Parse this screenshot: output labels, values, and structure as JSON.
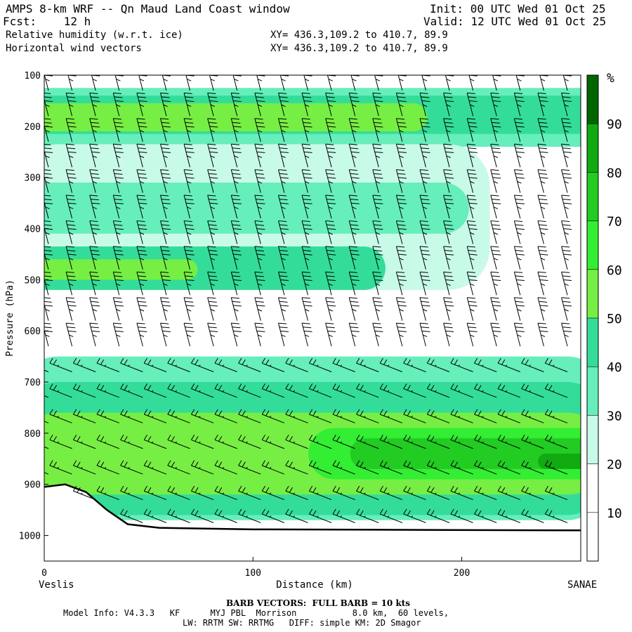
{
  "header": {
    "title": "AMPS 8-km WRF -- Qn Maud Land Coast window",
    "fcst": "Fcst:    12 h",
    "init": "Init: 00 UTC Wed 01 Oct 25",
    "valid": "Valid: 12 UTC Wed 01 Oct 25",
    "field1": "Relative humidity (w.r.t. ice)",
    "field2": "Horizontal wind vectors",
    "xy1": "XY= 436.3,109.2 to 410.7, 89.9",
    "xy2": "XY= 436.3,109.2 to 410.7, 89.9"
  },
  "footer": {
    "barb_note": "BARB VECTORS:  FULL BARB = 10 kts",
    "model_line1": "Model Info: V4.3.3   KF      MYJ PBL  Morrison           8.0 km,  60 levels,",
    "model_line2": "LW: RRTM SW: RRTMG   DIFF: simple KM: 2D Smagor"
  },
  "chart_data": {
    "type": "heatmap",
    "title": "Relative humidity (w.r.t. ice)",
    "xlabel": "Distance (km)",
    "ylabel": "Pressure (hPa)",
    "x_start_label": "Veslis",
    "x_end_label": "SANAE",
    "xlim": [
      0,
      257
    ],
    "ylim": [
      1050,
      100
    ],
    "xticks": [
      0,
      100,
      200
    ],
    "yticks": [
      100,
      200,
      300,
      400,
      500,
      600,
      700,
      800,
      900,
      1000
    ],
    "colorbar": {
      "unit": "%",
      "levels": [
        10,
        20,
        30,
        40,
        50,
        60,
        70,
        80,
        90
      ],
      "colors": [
        "#ffffff",
        "#ffffff",
        "#ffffff",
        "#c8fae8",
        "#66eebb",
        "#33dd99",
        "#77ee44",
        "#33ee33",
        "#22cc22",
        "#11aa11",
        "#006600"
      ]
    },
    "rh_bands": [
      {
        "x_start": 0,
        "x_end": 257,
        "p_top": 125,
        "p_bottom": 240,
        "rh": 45
      },
      {
        "x_start": 0,
        "x_end": 257,
        "p_top": 140,
        "p_bottom": 215,
        "rh": 55
      },
      {
        "x_start": 0,
        "x_end": 170,
        "p_top": 155,
        "p_bottom": 210,
        "rh": 62
      },
      {
        "x_start": 0,
        "x_end": 200,
        "p_top": 235,
        "p_bottom": 520,
        "rh": 36
      },
      {
        "x_start": 0,
        "x_end": 190,
        "p_top": 310,
        "p_bottom": 410,
        "rh": 44
      },
      {
        "x_start": 0,
        "x_end": 150,
        "p_top": 435,
        "p_bottom": 520,
        "rh": 55
      },
      {
        "x_start": 0,
        "x_end": 60,
        "p_top": 460,
        "p_bottom": 500,
        "rh": 63
      },
      {
        "x_start": 0,
        "x_end": 257,
        "p_top": 650,
        "p_bottom": 970,
        "rh": 42
      },
      {
        "x_start": 0,
        "x_end": 257,
        "p_top": 700,
        "p_bottom": 960,
        "rh": 52
      },
      {
        "x_start": 0,
        "x_end": 257,
        "p_top": 760,
        "p_bottom": 920,
        "rh": 63
      },
      {
        "x_start": 140,
        "x_end": 257,
        "p_top": 790,
        "p_bottom": 890,
        "rh": 75
      },
      {
        "x_start": 160,
        "x_end": 257,
        "p_top": 810,
        "p_bottom": 870,
        "rh": 86
      },
      {
        "x_start": 250,
        "x_end": 257,
        "p_top": 840,
        "p_bottom": 870,
        "rh": 93
      }
    ],
    "terrain_surface_hPa": [
      {
        "x": 0,
        "p": 905
      },
      {
        "x": 10,
        "p": 900
      },
      {
        "x": 20,
        "p": 915
      },
      {
        "x": 30,
        "p": 950
      },
      {
        "x": 40,
        "p": 978
      },
      {
        "x": 55,
        "p": 985
      },
      {
        "x": 100,
        "p": 988
      },
      {
        "x": 257,
        "p": 990
      }
    ],
    "wind_barbs": {
      "levels_hPa": [
        130,
        180,
        230,
        280,
        330,
        380,
        430,
        480,
        530,
        580,
        630,
        680,
        730,
        780,
        830,
        880,
        930,
        975
      ],
      "upper_speed_kts": 35,
      "lower_speed_kts": 25
    }
  }
}
